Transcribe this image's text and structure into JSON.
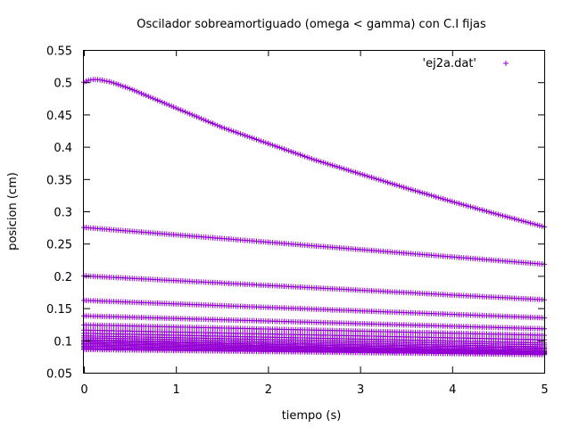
{
  "chart_data": {
    "type": "scatter",
    "title": "Oscilador sobreamortiguado (omega < gamma) con C.I fijas",
    "xlabel": "tiempo (s)",
    "ylabel": "posicion (cm)",
    "xlim": [
      0,
      5
    ],
    "ylim": [
      0.05,
      0.55
    ],
    "x_ticks": [
      "0",
      "1",
      "2",
      "3",
      "4",
      "5"
    ],
    "y_ticks": [
      "0.05",
      "0.1",
      "0.15",
      "0.2",
      "0.25",
      "0.3",
      "0.35",
      "0.4",
      "0.45",
      "0.5",
      "0.55"
    ],
    "grid": false,
    "legend_position": "top-right",
    "marker": "+",
    "color": "#9400d3",
    "series": [
      {
        "name": "'ej2a.dat'",
        "curves": [
          {
            "x": [
              0,
              0.05,
              0.1,
              0.15,
              0.2,
              0.3,
              0.5,
              1,
              1.5,
              2,
              2.5,
              3,
              3.5,
              4,
              4.5,
              5
            ],
            "y": [
              0.5,
              0.503,
              0.504,
              0.504,
              0.503,
              0.5,
              0.49,
              0.46,
              0.43,
              0.405,
              0.38,
              0.358,
              0.336,
              0.315,
              0.295,
              0.276
            ]
          },
          {
            "x": [
              0,
              5
            ],
            "y": [
              0.275,
              0.218
            ]
          },
          {
            "x": [
              0,
              5
            ],
            "y": [
              0.2,
              0.163
            ]
          },
          {
            "x": [
              0,
              5
            ],
            "y": [
              0.162,
              0.135
            ]
          },
          {
            "x": [
              0,
              5
            ],
            "y": [
              0.138,
              0.118
            ]
          },
          {
            "x": [
              0,
              5
            ],
            "y": [
              0.124,
              0.108
            ]
          },
          {
            "x": [
              0,
              5
            ],
            "y": [
              0.116,
              0.101
            ]
          },
          {
            "x": [
              0,
              5
            ],
            "y": [
              0.111,
              0.096
            ]
          },
          {
            "x": [
              0,
              5
            ],
            "y": [
              0.107,
              0.093
            ]
          },
          {
            "x": [
              0,
              5
            ],
            "y": [
              0.104,
              0.09
            ]
          },
          {
            "x": [
              0,
              5
            ],
            "y": [
              0.101,
              0.088
            ]
          },
          {
            "x": [
              0,
              5
            ],
            "y": [
              0.099,
              0.086
            ]
          },
          {
            "x": [
              0,
              5
            ],
            "y": [
              0.097,
              0.084
            ]
          },
          {
            "x": [
              0,
              5
            ],
            "y": [
              0.095,
              0.083
            ]
          },
          {
            "x": [
              0,
              5
            ],
            "y": [
              0.093,
              0.082
            ]
          },
          {
            "x": [
              0,
              5
            ],
            "y": [
              0.091,
              0.081
            ]
          },
          {
            "x": [
              0,
              5
            ],
            "y": [
              0.089,
              0.08
            ]
          },
          {
            "x": [
              0,
              5
            ],
            "y": [
              0.087,
              0.079
            ]
          },
          {
            "x": [
              0,
              5
            ],
            "y": [
              0.086,
              0.078
            ]
          }
        ]
      }
    ]
  }
}
